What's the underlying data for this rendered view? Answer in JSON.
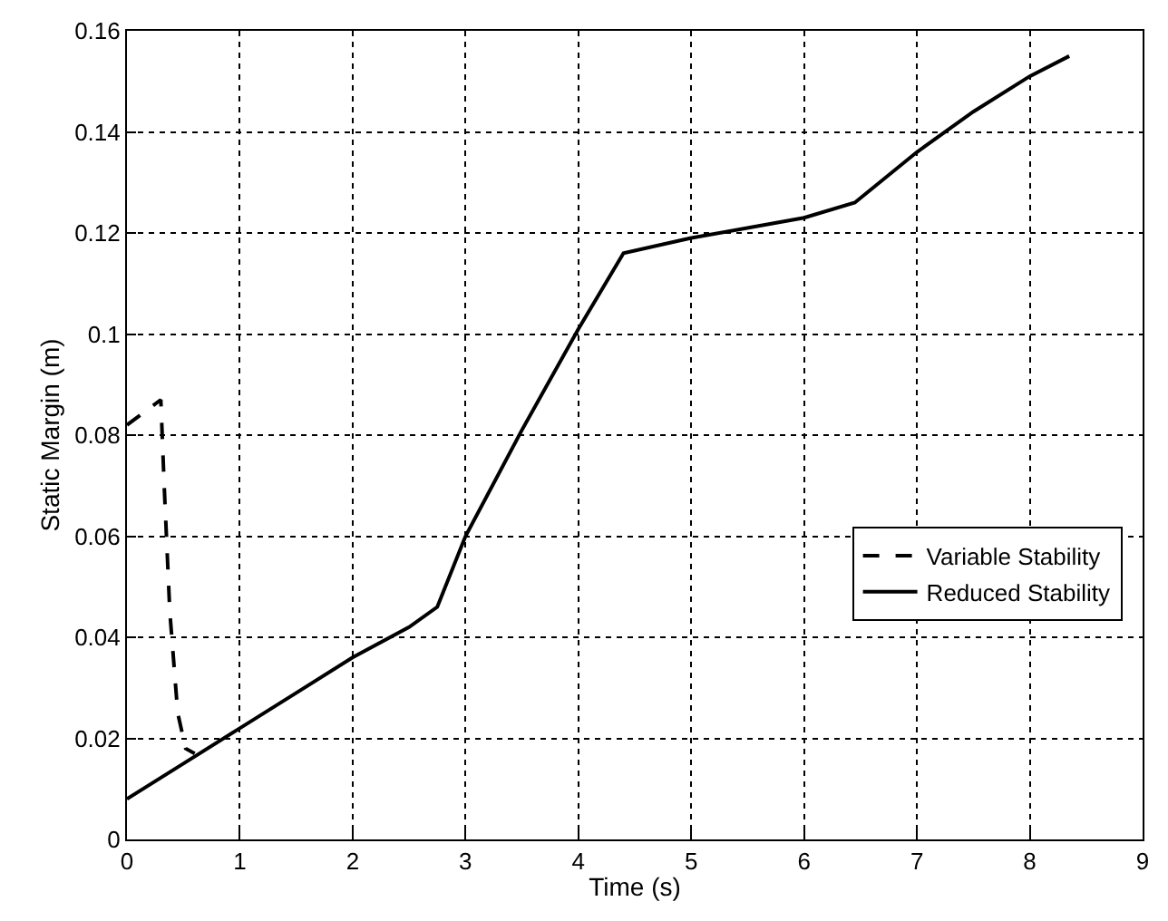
{
  "chart_data": {
    "type": "line",
    "xlabel": "Time (s)",
    "ylabel": "Static Margin (m)",
    "xlim": [
      0,
      9
    ],
    "xticks": [
      0,
      1,
      2,
      3,
      4,
      5,
      6,
      7,
      8,
      9
    ],
    "ylim": [
      0,
      0.16
    ],
    "yticks": [
      0,
      0.02,
      0.04,
      0.06,
      0.08,
      0.1,
      0.12,
      0.14,
      0.16
    ],
    "grid": true,
    "legend": "bottom right",
    "marker": "none",
    "series": [
      {
        "name": "Variable Stability",
        "color": "#000000",
        "line_style": "dashed",
        "x": [
          0,
          0.3,
          0.33,
          0.38,
          0.45,
          0.52,
          0.6
        ],
        "values": [
          0.082,
          0.087,
          0.07,
          0.045,
          0.025,
          0.018,
          0.017
        ]
      },
      {
        "name": "Reduced Stability",
        "color": "#000000",
        "line_style": "solid",
        "x": [
          0,
          0.5,
          1,
          1.5,
          2,
          2.5,
          2.75,
          3,
          3.5,
          4,
          4.4,
          5,
          6,
          6.45,
          7,
          7.5,
          8,
          8.35
        ],
        "values": [
          0.008,
          0.015,
          0.022,
          0.029,
          0.036,
          0.042,
          0.046,
          0.06,
          0.081,
          0.101,
          0.116,
          0.119,
          0.123,
          0.126,
          0.136,
          0.144,
          0.151,
          0.155
        ]
      }
    ]
  }
}
